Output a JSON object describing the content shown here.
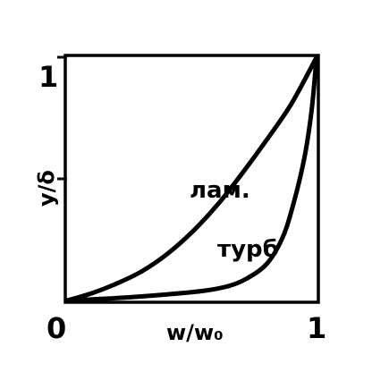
{
  "chart_data": {
    "type": "line",
    "xlabel": "w/w₀",
    "ylabel": "y/δ",
    "xlim": [
      0,
      1
    ],
    "ylim": [
      0,
      1
    ],
    "x_ticks": [
      {
        "value": 0,
        "label": "0"
      },
      {
        "value": 1,
        "label": "1"
      }
    ],
    "y_ticks": [
      {
        "value": 0.5,
        "label": ""
      },
      {
        "value": 1,
        "label": "1"
      }
    ],
    "grid": false,
    "series": [
      {
        "name": "лам.",
        "points": [
          [
            0,
            0
          ],
          [
            0.1,
            0.03
          ],
          [
            0.2,
            0.07
          ],
          [
            0.3,
            0.12
          ],
          [
            0.4,
            0.19
          ],
          [
            0.5,
            0.28
          ],
          [
            0.6,
            0.39
          ],
          [
            0.7,
            0.52
          ],
          [
            0.8,
            0.66
          ],
          [
            0.9,
            0.81
          ],
          [
            1.0,
            1.0
          ]
        ]
      },
      {
        "name": "турб",
        "points": [
          [
            0,
            0
          ],
          [
            0.2,
            0.01
          ],
          [
            0.4,
            0.025
          ],
          [
            0.55,
            0.04
          ],
          [
            0.65,
            0.06
          ],
          [
            0.72,
            0.09
          ],
          [
            0.8,
            0.15
          ],
          [
            0.86,
            0.25
          ],
          [
            0.9,
            0.37
          ],
          [
            0.95,
            0.58
          ],
          [
            0.98,
            0.78
          ],
          [
            1.0,
            1.0
          ]
        ]
      }
    ]
  }
}
